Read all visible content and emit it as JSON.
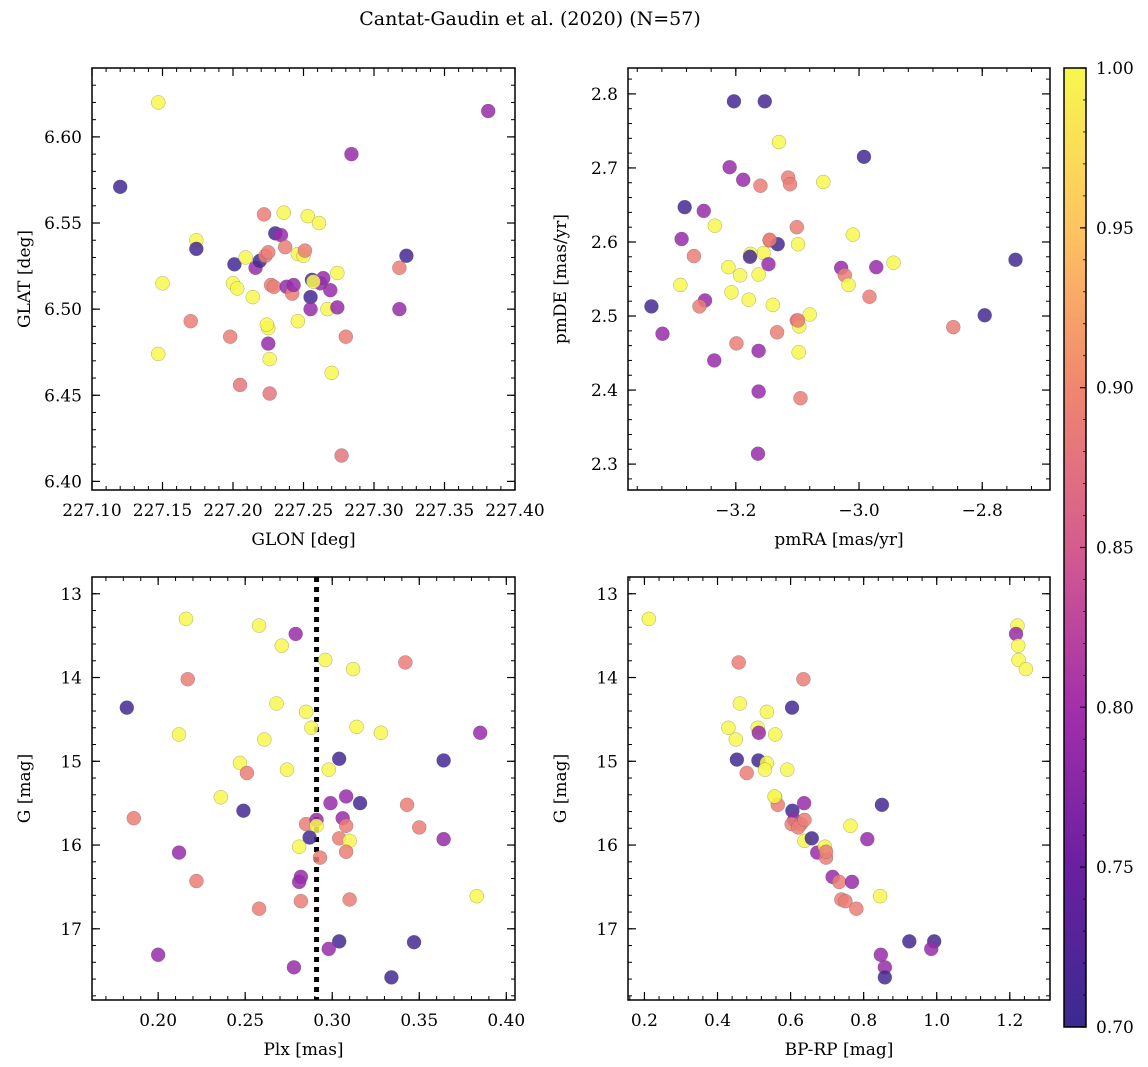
{
  "suptitle": "Cantat-Gaudin et al. (2020) (N=57)",
  "colorbar": {
    "range": [
      0.7,
      1.0
    ],
    "ticks": [
      0.7,
      0.75,
      0.8,
      0.85,
      0.9,
      0.95,
      1.0
    ],
    "tick_labels": [
      "0.70",
      "0.75",
      "0.80",
      "0.85",
      "0.90",
      "0.95",
      "1.00"
    ],
    "colormap": "plasma"
  },
  "chart_data": [
    {
      "type": "scatter",
      "xlabel": "GLON [deg]",
      "ylabel": "GLAT [deg]",
      "xlim": [
        227.1,
        227.4
      ],
      "ylim": [
        6.395,
        6.64
      ],
      "xticks": [
        227.1,
        227.15,
        227.2,
        227.25,
        227.3,
        227.35,
        227.4
      ],
      "xtick_labels": [
        "227.10",
        "227.15",
        "227.20",
        "227.25",
        "227.30",
        "227.35",
        "227.40"
      ],
      "yticks": [
        6.4,
        6.45,
        6.5,
        6.55,
        6.6
      ],
      "ytick_labels": [
        "6.40",
        "6.45",
        "6.50",
        "6.55",
        "6.60"
      ],
      "points": [
        [
          227.147,
          6.62,
          1.0
        ],
        [
          227.12,
          6.571,
          0.71
        ],
        [
          227.381,
          6.615,
          0.79
        ],
        [
          227.284,
          6.59,
          0.79
        ],
        [
          227.174,
          6.54,
          1.0
        ],
        [
          227.174,
          6.535,
          0.71
        ],
        [
          227.15,
          6.515,
          1.0
        ],
        [
          227.147,
          6.474,
          1.0
        ],
        [
          227.17,
          6.493,
          0.89
        ],
        [
          227.198,
          6.484,
          0.89
        ],
        [
          227.2,
          6.515,
          1.0
        ],
        [
          227.203,
          6.512,
          1.0
        ],
        [
          227.201,
          6.526,
          0.71
        ],
        [
          227.205,
          6.456,
          0.88
        ],
        [
          227.209,
          6.53,
          1.0
        ],
        [
          227.214,
          6.507,
          1.0
        ],
        [
          227.216,
          6.524,
          0.79
        ],
        [
          227.219,
          6.528,
          0.71
        ],
        [
          227.222,
          6.555,
          0.89
        ],
        [
          227.223,
          6.531,
          0.89
        ],
        [
          227.225,
          6.489,
          1.0
        ],
        [
          227.224,
          6.491,
          1.0
        ],
        [
          227.225,
          6.533,
          0.89
        ],
        [
          227.226,
          6.471,
          1.0
        ],
        [
          227.226,
          6.451,
          0.88
        ],
        [
          227.225,
          6.48,
          0.79
        ],
        [
          227.227,
          6.514,
          0.89
        ],
        [
          227.229,
          6.513,
          0.89
        ],
        [
          227.23,
          6.544,
          0.71
        ],
        [
          227.234,
          6.543,
          0.79
        ],
        [
          227.236,
          6.556,
          1.0
        ],
        [
          227.237,
          6.536,
          0.89
        ],
        [
          227.238,
          6.513,
          0.79
        ],
        [
          227.242,
          6.509,
          0.89
        ],
        [
          227.243,
          6.514,
          0.79
        ],
        [
          227.246,
          6.532,
          1.0
        ],
        [
          227.246,
          6.493,
          1.0
        ],
        [
          227.25,
          6.531,
          1.0
        ],
        [
          227.251,
          6.534,
          0.89
        ],
        [
          227.253,
          6.554,
          1.0
        ],
        [
          227.255,
          6.507,
          0.71
        ],
        [
          227.256,
          6.517,
          0.71
        ],
        [
          227.255,
          6.5,
          0.79
        ],
        [
          227.261,
          6.55,
          1.0
        ],
        [
          227.262,
          6.515,
          0.79
        ],
        [
          227.264,
          6.518,
          0.79
        ],
        [
          227.267,
          6.5,
          1.0
        ],
        [
          227.269,
          6.511,
          0.79
        ],
        [
          227.27,
          6.463,
          1.0
        ],
        [
          227.274,
          6.521,
          1.0
        ],
        [
          227.274,
          6.501,
          0.79
        ],
        [
          227.277,
          6.415,
          0.88
        ],
        [
          227.28,
          6.484,
          0.89
        ],
        [
          227.318,
          6.524,
          0.89
        ],
        [
          227.318,
          6.5,
          0.79
        ],
        [
          227.323,
          6.531,
          0.71
        ],
        [
          227.257,
          6.516,
          1.0
        ]
      ]
    },
    {
      "type": "scatter",
      "xlabel": "pmRA [mas/yr]",
      "ylabel": "pmDE [mas/yr]",
      "xlim": [
        -3.375,
        -2.69
      ],
      "ylim": [
        2.265,
        2.835
      ],
      "xticks": [
        -3.2,
        -3.0,
        -2.8
      ],
      "xtick_labels": [
        "−3.2",
        "−3.0",
        "−2.8"
      ],
      "yticks": [
        2.3,
        2.4,
        2.5,
        2.6,
        2.7,
        2.8
      ],
      "ytick_labels": [
        "2.3",
        "2.4",
        "2.5",
        "2.6",
        "2.7",
        "2.8"
      ],
      "points": [
        [
          -3.203,
          2.79,
          0.71
        ],
        [
          -3.153,
          2.79,
          0.71
        ],
        [
          -3.13,
          2.735,
          1.0
        ],
        [
          -3.115,
          2.687,
          0.89
        ],
        [
          -3.112,
          2.678,
          0.89
        ],
        [
          -3.16,
          2.676,
          0.89
        ],
        [
          -3.21,
          2.701,
          0.79
        ],
        [
          -3.188,
          2.684,
          0.79
        ],
        [
          -3.058,
          2.681,
          1.0
        ],
        [
          -2.992,
          2.715,
          0.71
        ],
        [
          -3.283,
          2.647,
          0.71
        ],
        [
          -3.234,
          2.622,
          1.0
        ],
        [
          -3.252,
          2.642,
          0.79
        ],
        [
          -3.288,
          2.604,
          0.79
        ],
        [
          -3.101,
          2.62,
          0.89
        ],
        [
          -3.145,
          2.602,
          0.89
        ],
        [
          -3.01,
          2.61,
          1.0
        ],
        [
          -3.132,
          2.597,
          0.71
        ],
        [
          -3.099,
          2.597,
          1.0
        ],
        [
          -3.029,
          2.565,
          0.79
        ],
        [
          -3.023,
          2.555,
          0.89
        ],
        [
          -3.017,
          2.542,
          1.0
        ],
        [
          -2.972,
          2.566,
          0.79
        ],
        [
          -2.944,
          2.572,
          1.0
        ],
        [
          -2.746,
          2.576,
          0.71
        ],
        [
          -3.212,
          2.566,
          1.0
        ],
        [
          -3.193,
          2.555,
          1.0
        ],
        [
          -3.163,
          2.556,
          1.0
        ],
        [
          -3.155,
          2.585,
          1.0
        ],
        [
          -3.176,
          2.584,
          1.0
        ],
        [
          -3.177,
          2.58,
          0.71
        ],
        [
          -3.147,
          2.57,
          0.79
        ],
        [
          -3.268,
          2.581,
          0.89
        ],
        [
          -3.29,
          2.542,
          1.0
        ],
        [
          -3.207,
          2.532,
          1.0
        ],
        [
          -3.179,
          2.522,
          1.0
        ],
        [
          -3.25,
          2.521,
          0.79
        ],
        [
          -3.337,
          2.513,
          0.71
        ],
        [
          -3.259,
          2.513,
          0.89
        ],
        [
          -3.14,
          2.515,
          1.0
        ],
        [
          -3.08,
          2.502,
          1.0
        ],
        [
          -3.101,
          2.494,
          0.89
        ],
        [
          -3.097,
          2.486,
          1.0
        ],
        [
          -3.133,
          2.478,
          0.89
        ],
        [
          -2.983,
          2.526,
          0.89
        ],
        [
          -2.847,
          2.485,
          0.89
        ],
        [
          -2.796,
          2.501,
          0.71
        ],
        [
          -3.319,
          2.476,
          0.79
        ],
        [
          -3.199,
          2.463,
          0.89
        ],
        [
          -3.163,
          2.453,
          0.79
        ],
        [
          -3.098,
          2.451,
          1.0
        ],
        [
          -3.235,
          2.44,
          0.79
        ],
        [
          -3.163,
          2.398,
          0.79
        ],
        [
          -3.095,
          2.389,
          0.89
        ],
        [
          -3.164,
          2.314,
          0.79
        ],
        [
          -3.099,
          2.494,
          0.89
        ],
        [
          -3.145,
          2.603,
          0.89
        ]
      ]
    },
    {
      "type": "scatter",
      "xlabel": "Plx [mas]",
      "ylabel": "G [mag]",
      "xlim": [
        0.162,
        0.405
      ],
      "ylim": [
        17.85,
        12.8
      ],
      "xticks": [
        0.2,
        0.25,
        0.3,
        0.35,
        0.4
      ],
      "xtick_labels": [
        "0.20",
        "0.25",
        "0.30",
        "0.35",
        "0.40"
      ],
      "yticks": [
        13,
        14,
        15,
        16,
        17
      ],
      "ytick_labels": [
        "13",
        "14",
        "15",
        "16",
        "17"
      ],
      "vline": 0.291,
      "points": [
        [
          0.216,
          13.3,
          1.0
        ],
        [
          0.258,
          13.38,
          1.0
        ],
        [
          0.279,
          13.48,
          0.79
        ],
        [
          0.271,
          13.62,
          1.0
        ],
        [
          0.296,
          13.79,
          1.0
        ],
        [
          0.312,
          13.9,
          1.0
        ],
        [
          0.342,
          13.82,
          0.89
        ],
        [
          0.217,
          14.02,
          0.89
        ],
        [
          0.182,
          14.36,
          0.71
        ],
        [
          0.268,
          14.31,
          1.0
        ],
        [
          0.285,
          14.41,
          1.0
        ],
        [
          0.288,
          14.6,
          1.0
        ],
        [
          0.212,
          14.68,
          1.0
        ],
        [
          0.261,
          14.74,
          1.0
        ],
        [
          0.314,
          14.59,
          1.0
        ],
        [
          0.328,
          14.66,
          1.0
        ],
        [
          0.385,
          14.66,
          0.79
        ],
        [
          0.247,
          15.02,
          1.0
        ],
        [
          0.251,
          15.14,
          0.89
        ],
        [
          0.274,
          15.1,
          1.0
        ],
        [
          0.298,
          15.1,
          1.0
        ],
        [
          0.304,
          14.97,
          0.71
        ],
        [
          0.364,
          14.99,
          0.71
        ],
        [
          0.236,
          15.43,
          1.0
        ],
        [
          0.249,
          15.59,
          0.71
        ],
        [
          0.299,
          15.5,
          0.79
        ],
        [
          0.308,
          15.42,
          0.79
        ],
        [
          0.316,
          15.5,
          0.71
        ],
        [
          0.343,
          15.52,
          0.89
        ],
        [
          0.186,
          15.68,
          0.89
        ],
        [
          0.285,
          15.75,
          0.89
        ],
        [
          0.291,
          15.7,
          0.79
        ],
        [
          0.306,
          15.68,
          0.79
        ],
        [
          0.308,
          15.77,
          0.89
        ],
        [
          0.291,
          15.77,
          1.0
        ],
        [
          0.35,
          15.79,
          0.89
        ],
        [
          0.287,
          15.91,
          0.71
        ],
        [
          0.304,
          15.92,
          0.89
        ],
        [
          0.31,
          15.95,
          1.0
        ],
        [
          0.364,
          15.93,
          0.79
        ],
        [
          0.281,
          16.02,
          1.0
        ],
        [
          0.212,
          16.09,
          0.79
        ],
        [
          0.293,
          16.15,
          0.89
        ],
        [
          0.308,
          16.08,
          0.89
        ],
        [
          0.222,
          16.43,
          0.89
        ],
        [
          0.282,
          16.38,
          0.79
        ],
        [
          0.281,
          16.44,
          0.79
        ],
        [
          0.383,
          16.61,
          1.0
        ],
        [
          0.282,
          16.67,
          0.89
        ],
        [
          0.31,
          16.65,
          0.89
        ],
        [
          0.258,
          16.76,
          0.89
        ],
        [
          0.304,
          17.15,
          0.71
        ],
        [
          0.298,
          17.24,
          0.79
        ],
        [
          0.347,
          17.16,
          0.71
        ],
        [
          0.2,
          17.31,
          0.79
        ],
        [
          0.278,
          17.46,
          0.79
        ],
        [
          0.334,
          17.58,
          0.71
        ]
      ]
    },
    {
      "type": "scatter",
      "xlabel": "BP-RP [mag]",
      "ylabel": "G [mag]",
      "xlim": [
        0.155,
        1.31
      ],
      "ylim": [
        17.85,
        12.8
      ],
      "xticks": [
        0.2,
        0.4,
        0.6,
        0.8,
        1.0,
        1.2
      ],
      "xtick_labels": [
        "0.2",
        "0.4",
        "0.6",
        "0.8",
        "1.0",
        "1.2"
      ],
      "yticks": [
        13,
        14,
        15,
        16,
        17
      ],
      "ytick_labels": [
        "13",
        "14",
        "15",
        "16",
        "17"
      ],
      "points": [
        [
          0.212,
          13.3,
          1.0
        ],
        [
          1.221,
          13.38,
          1.0
        ],
        [
          1.217,
          13.48,
          0.79
        ],
        [
          1.223,
          13.62,
          1.0
        ],
        [
          1.224,
          13.79,
          1.0
        ],
        [
          1.244,
          13.9,
          1.0
        ],
        [
          0.458,
          13.82,
          0.89
        ],
        [
          0.635,
          14.02,
          0.89
        ],
        [
          0.604,
          14.36,
          0.71
        ],
        [
          0.461,
          14.31,
          1.0
        ],
        [
          0.535,
          14.41,
          1.0
        ],
        [
          0.43,
          14.6,
          1.0
        ],
        [
          0.45,
          14.74,
          1.0
        ],
        [
          0.51,
          14.6,
          1.0
        ],
        [
          0.513,
          14.66,
          0.79
        ],
        [
          0.558,
          14.68,
          1.0
        ],
        [
          0.453,
          14.98,
          0.71
        ],
        [
          0.512,
          14.99,
          0.71
        ],
        [
          0.535,
          15.02,
          1.0
        ],
        [
          0.53,
          15.1,
          1.0
        ],
        [
          0.48,
          15.14,
          0.89
        ],
        [
          0.591,
          15.1,
          1.0
        ],
        [
          0.558,
          15.43,
          1.0
        ],
        [
          0.565,
          15.52,
          0.89
        ],
        [
          0.637,
          15.5,
          0.79
        ],
        [
          0.85,
          15.52,
          0.71
        ],
        [
          0.605,
          15.59,
          0.71
        ],
        [
          0.61,
          15.7,
          0.79
        ],
        [
          0.603,
          15.75,
          0.89
        ],
        [
          0.628,
          15.75,
          0.89
        ],
        [
          0.621,
          15.79,
          0.89
        ],
        [
          0.638,
          15.7,
          0.89
        ],
        [
          0.764,
          15.77,
          1.0
        ],
        [
          0.638,
          15.95,
          1.0
        ],
        [
          0.658,
          15.92,
          0.71
        ],
        [
          0.81,
          15.93,
          0.79
        ],
        [
          0.673,
          16.09,
          0.79
        ],
        [
          0.697,
          16.15,
          0.89
        ],
        [
          0.694,
          16.02,
          1.0
        ],
        [
          0.715,
          16.38,
          0.79
        ],
        [
          0.733,
          16.44,
          0.89
        ],
        [
          0.768,
          16.44,
          0.79
        ],
        [
          0.845,
          16.61,
          1.0
        ],
        [
          0.739,
          16.65,
          0.89
        ],
        [
          0.75,
          16.67,
          0.89
        ],
        [
          0.78,
          16.76,
          0.89
        ],
        [
          0.925,
          17.15,
          0.71
        ],
        [
          0.993,
          17.15,
          0.71
        ],
        [
          0.985,
          17.24,
          0.79
        ],
        [
          0.847,
          17.31,
          0.79
        ],
        [
          0.858,
          17.46,
          0.79
        ],
        [
          0.858,
          17.58,
          0.71
        ],
        [
          0.556,
          15.42,
          1.0
        ],
        [
          0.697,
          16.08,
          0.89
        ]
      ]
    }
  ]
}
